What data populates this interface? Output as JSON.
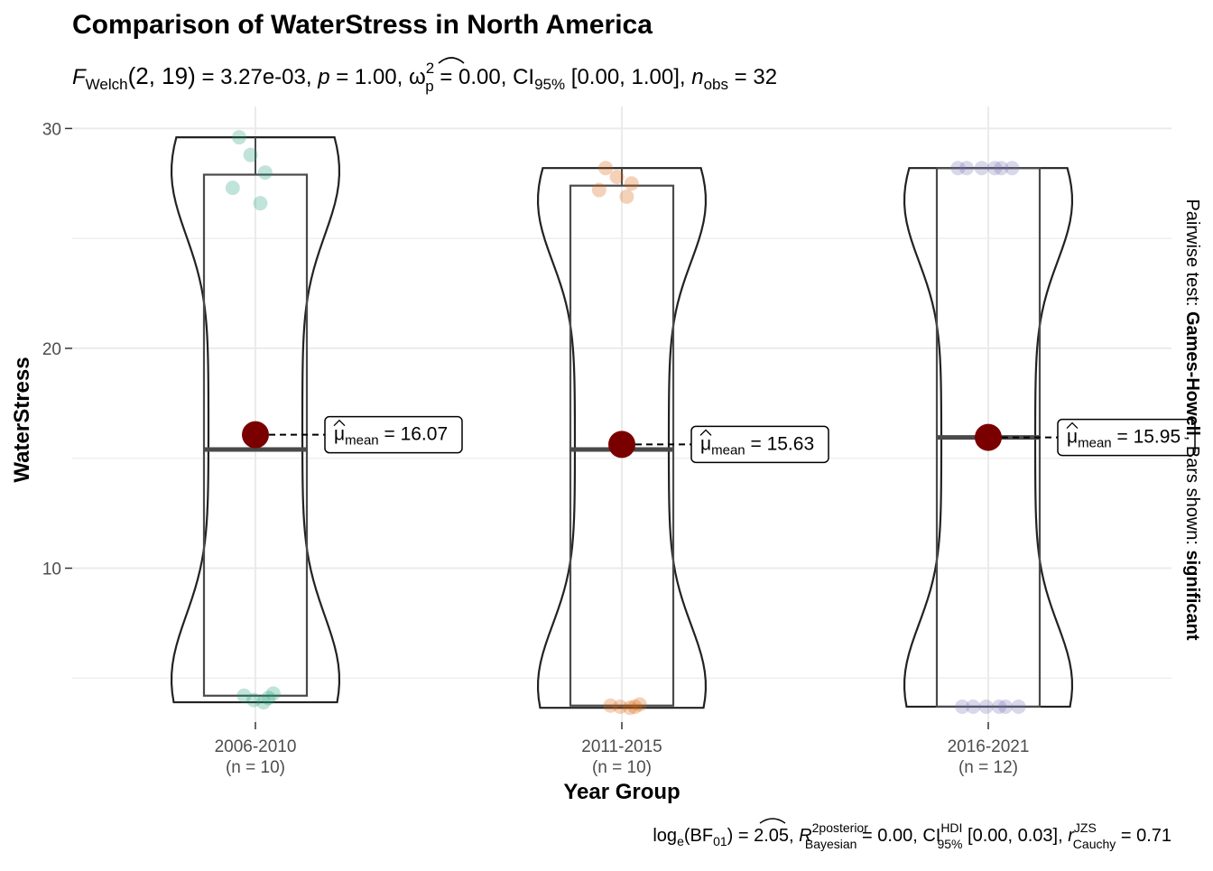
{
  "chart_data": {
    "type": "violin-box",
    "title": "Comparison of WaterStress in North America",
    "subtitle": {
      "f_symbol": "F",
      "f_sub": "Welch",
      "df": "(2, 19)",
      "f_value": "= 3.27e-03,",
      "p_symbol": "p",
      "p_value": "= 1.00,",
      "omega_symbol": "ω",
      "omega_sup": "2",
      "omega_sub": "p",
      "omega_value": "= 0.00,",
      "ci_symbol": "CI",
      "ci_sub": "95%",
      "ci_value": "[0.00, 1.00],",
      "n_symbol": "n",
      "n_sub": "obs",
      "n_value": "= 32"
    },
    "xlabel": "Year Group",
    "ylabel": "WaterStress",
    "ylim": [
      3.0,
      31.0
    ],
    "yticks": [
      10,
      20,
      30
    ],
    "grid": true,
    "right_caption": {
      "prefix": "Pairwise test: ",
      "test": "Games-Howell",
      "middle": ", Bars shown: ",
      "shown": "significant"
    },
    "bottom_caption": {
      "log": "log",
      "log_sub": "e",
      "bf": "(BF",
      "bf_sub": "01",
      "bf_value": ") = 2.05,",
      "r_symbol": "R",
      "r_sup": "2",
      "r_sup2": "posterior",
      "r_sub": "Bayesian",
      "r_value": "= 0.00,",
      "ci_symbol": "CI",
      "ci_sup": "HDI",
      "ci_sub": "95%",
      "ci_value": "[0.00, 0.03],",
      "rc_symbol": "r",
      "rc_sup": "JZS",
      "rc_sub": "Cauchy",
      "rc_value": "= 0.71"
    },
    "mean_label": {
      "symbol": "μ",
      "sub": "mean",
      "eq": "="
    },
    "groups": [
      {
        "name": "2006-2010",
        "n_label": "(n = 10)",
        "color": "#1B9E77",
        "points": [
          29.6,
          28.8,
          28.0,
          27.3,
          26.6,
          4.3,
          4.2,
          4.1,
          4.0,
          3.9
        ],
        "q1": 4.2,
        "median": 15.4,
        "q3": 27.9,
        "min": 3.9,
        "max": 29.6,
        "mean": 16.07,
        "mean_text": "16.07"
      },
      {
        "name": "2011-2015",
        "n_label": "(n = 10)",
        "color": "#D95F02",
        "points": [
          28.2,
          27.8,
          27.5,
          27.2,
          26.9,
          3.8,
          3.75,
          3.7,
          3.7,
          3.65
        ],
        "q1": 3.75,
        "median": 15.4,
        "q3": 27.4,
        "min": 3.65,
        "max": 28.2,
        "mean": 15.63,
        "mean_text": "15.63"
      },
      {
        "name": "2016-2021",
        "n_label": "(n = 12)",
        "color": "#7570B3",
        "points": [
          28.2,
          28.2,
          28.2,
          28.2,
          28.2,
          28.2,
          3.7,
          3.7,
          3.7,
          3.7,
          3.7,
          3.7
        ],
        "q1": 3.7,
        "median": 15.95,
        "q3": 28.2,
        "min": 3.7,
        "max": 28.2,
        "mean": 15.95,
        "mean_text": "15.95"
      }
    ]
  }
}
